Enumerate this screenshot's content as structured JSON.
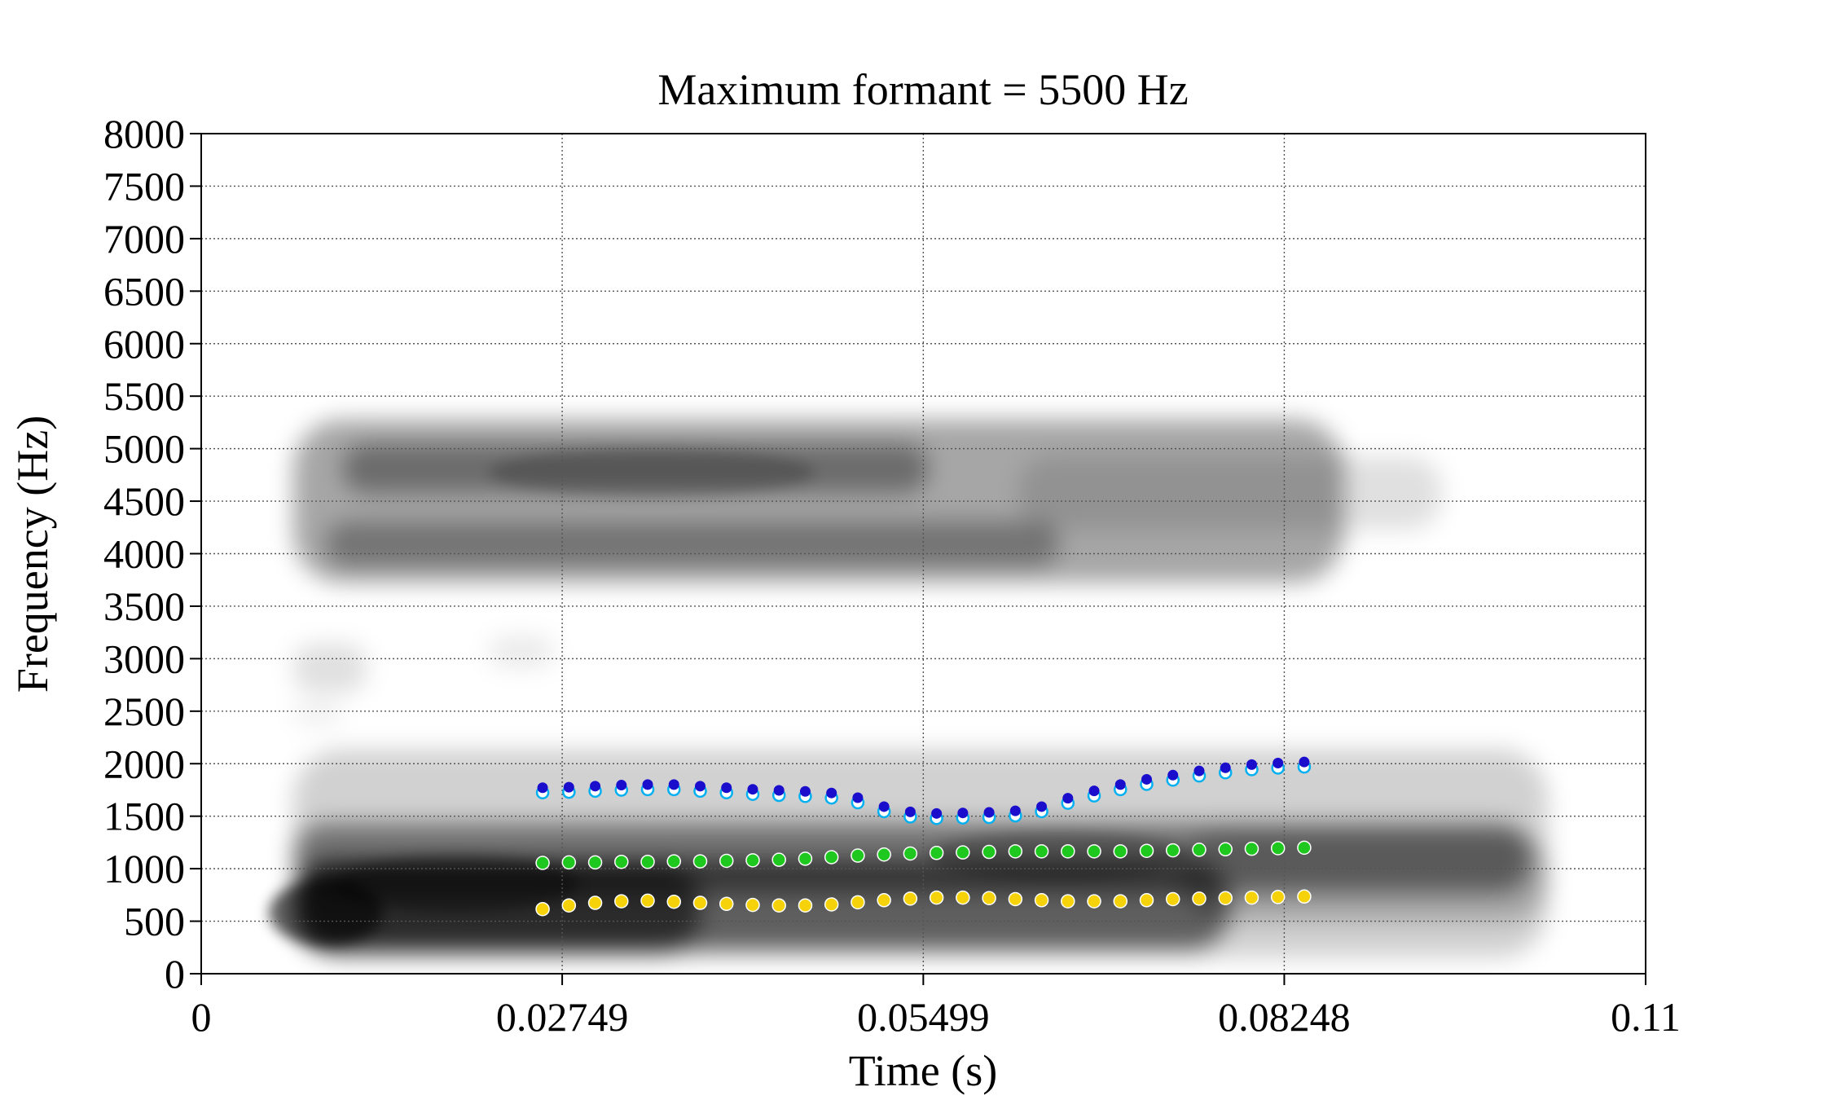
{
  "chart_data": {
    "type": "scatter",
    "title": "Maximum formant = 5500 Hz",
    "xlabel": "Time (s)",
    "ylabel": "Frequency (Hz)",
    "xlim": [
      0,
      0.11
    ],
    "ylim": [
      0,
      8000
    ],
    "x_ticks": [
      {
        "value": 0,
        "label": "0"
      },
      {
        "value": 0.02749,
        "label": "0.02749"
      },
      {
        "value": 0.05499,
        "label": "0.05499"
      },
      {
        "value": 0.08248,
        "label": "0.08248"
      },
      {
        "value": 0.11,
        "label": "0.11"
      }
    ],
    "y_ticks": [
      0,
      500,
      1000,
      1500,
      2000,
      2500,
      3000,
      3500,
      4000,
      4500,
      5000,
      5500,
      6000,
      6500,
      7000,
      7500,
      8000
    ],
    "grid": true,
    "background": "grayscale spectrogram",
    "series": [
      {
        "color": "#1a0dcc",
        "marker_styles": [
          "#00b0f0 open circle",
          "#1a0dcc filled dot"
        ],
        "x": [
          0.026,
          0.028,
          0.03,
          0.032,
          0.034,
          0.036,
          0.038,
          0.04,
          0.042,
          0.044,
          0.046,
          0.048,
          0.05,
          0.052,
          0.054,
          0.056,
          0.058,
          0.06,
          0.062,
          0.064,
          0.066,
          0.068,
          0.07,
          0.072,
          0.074,
          0.076,
          0.078,
          0.08,
          0.082,
          0.084
        ],
        "values": [
          1740,
          1745,
          1755,
          1765,
          1770,
          1770,
          1755,
          1740,
          1725,
          1715,
          1705,
          1690,
          1645,
          1560,
          1510,
          1495,
          1500,
          1505,
          1520,
          1560,
          1640,
          1710,
          1770,
          1820,
          1860,
          1900,
          1930,
          1960,
          1975,
          1985
        ]
      },
      {
        "color": "#1ec81e",
        "x": [
          0.026,
          0.028,
          0.03,
          0.032,
          0.034,
          0.036,
          0.038,
          0.04,
          0.042,
          0.044,
          0.046,
          0.048,
          0.05,
          0.052,
          0.054,
          0.056,
          0.058,
          0.06,
          0.062,
          0.064,
          0.066,
          0.068,
          0.07,
          0.072,
          0.074,
          0.076,
          0.078,
          0.08,
          0.082,
          0.084
        ],
        "values": [
          1055,
          1060,
          1060,
          1065,
          1065,
          1070,
          1070,
          1075,
          1080,
          1085,
          1095,
          1110,
          1125,
          1135,
          1145,
          1150,
          1155,
          1160,
          1165,
          1165,
          1165,
          1165,
          1165,
          1170,
          1175,
          1180,
          1185,
          1190,
          1195,
          1200
        ]
      },
      {
        "color": "#f5d20a",
        "x": [
          0.026,
          0.028,
          0.03,
          0.032,
          0.034,
          0.036,
          0.038,
          0.04,
          0.042,
          0.044,
          0.046,
          0.048,
          0.05,
          0.052,
          0.054,
          0.056,
          0.058,
          0.06,
          0.062,
          0.064,
          0.066,
          0.068,
          0.07,
          0.072,
          0.074,
          0.076,
          0.078,
          0.08,
          0.082,
          0.084
        ],
        "values": [
          615,
          650,
          675,
          690,
          695,
          685,
          675,
          665,
          655,
          650,
          650,
          660,
          680,
          700,
          715,
          725,
          725,
          720,
          710,
          700,
          690,
          690,
          690,
          700,
          710,
          715,
          720,
          725,
          730,
          735
        ]
      }
    ]
  }
}
